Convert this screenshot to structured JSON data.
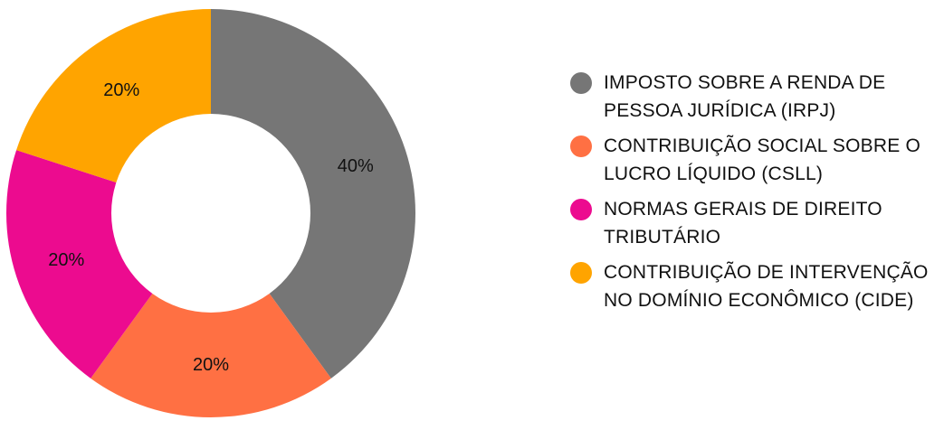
{
  "chart_data": {
    "type": "pie",
    "variant": "donut",
    "title": "",
    "legend_position": "right",
    "series": [
      {
        "categories": [
          "IMPOSTO SOBRE A RENDA DE PESSOA JURÍDICA (IRPJ)",
          "CONTRIBUIÇÃO SOCIAL SOBRE O LUCRO LÍQUIDO (CSLL)",
          "NORMAS GERAIS DE DIREITO TRIBUTÁRIO",
          "CONTRIBUIÇÃO DE INTERVENÇÃO NO DOMÍNIO ECONÔMICO (CIDE)"
        ],
        "values": [
          40,
          20,
          20,
          20
        ],
        "labels": [
          "40%",
          "20%",
          "20%",
          "20%"
        ],
        "colors": [
          "#767676",
          "#ff7043",
          "#ec0b8f",
          "#ffa400"
        ]
      }
    ]
  },
  "legend": {
    "items": [
      {
        "label": "IMPOSTO SOBRE A RENDA DE PESSOA JURÍDICA (IRPJ)",
        "color": "#767676"
      },
      {
        "label": "CONTRIBUIÇÃO SOCIAL SOBRE O LUCRO LÍQUIDO (CSLL)",
        "color": "#ff7043"
      },
      {
        "label": "NORMAS GERAIS DE DIREITO TRIBUTÁRIO",
        "color": "#ec0b8f"
      },
      {
        "label": "CONTRIBUIÇÃO DE INTERVENÇÃO NO DOMÍNIO ECONÔMICO (CIDE)",
        "color": "#ffa400"
      }
    ]
  }
}
